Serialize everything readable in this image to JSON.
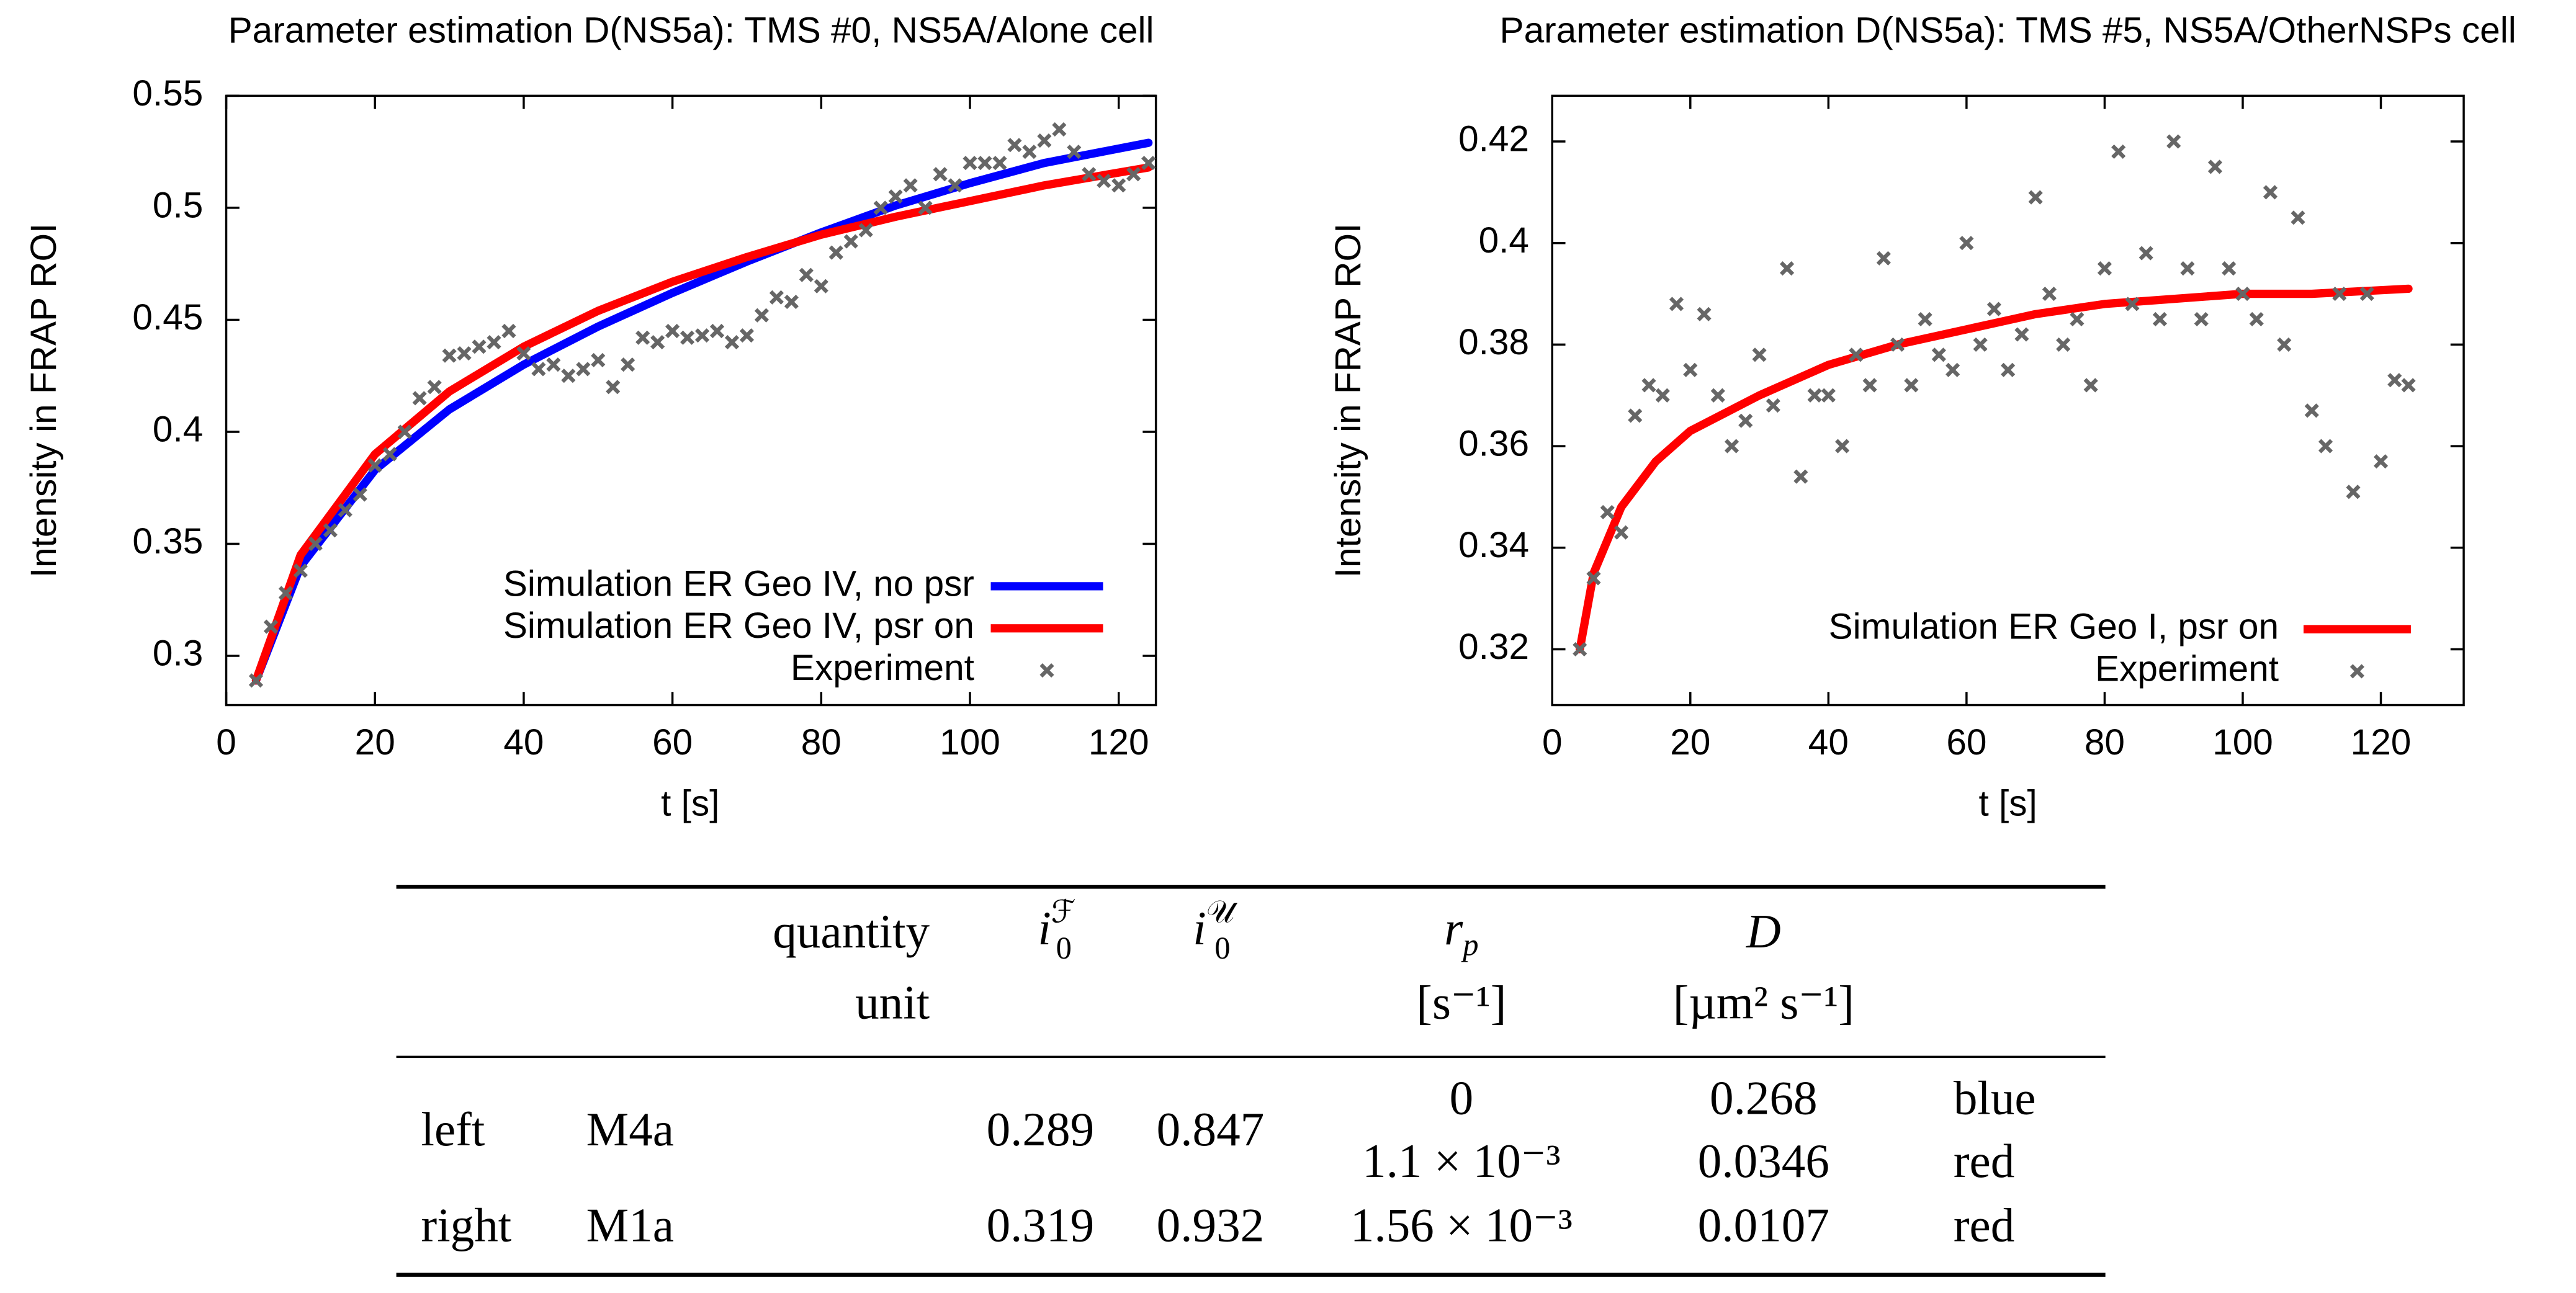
{
  "chart_data": [
    {
      "type": "line",
      "title": "Parameter estimation D(NS5a): TMS #0, NS5A/Alone cell",
      "xlabel": "t [s]",
      "ylabel": "Intensity in FRAP ROI",
      "xlim": [
        0,
        125
      ],
      "ylim": [
        0.278,
        0.55
      ],
      "xticks": [
        0,
        20,
        40,
        60,
        80,
        100,
        120
      ],
      "yticks": [
        0.3,
        0.35,
        0.4,
        0.45,
        0.5,
        0.55
      ],
      "legend": "lower right",
      "series": [
        {
          "name": "Simulation ER Geo IV, no psr",
          "color": "#0000ff",
          "style": "line",
          "x": [
            4,
            10,
            20,
            30,
            40,
            50,
            60,
            70,
            80,
            90,
            100,
            110,
            124
          ],
          "values": [
            0.289,
            0.34,
            0.383,
            0.41,
            0.43,
            0.447,
            0.462,
            0.476,
            0.489,
            0.501,
            0.511,
            0.52,
            0.529
          ]
        },
        {
          "name": "Simulation ER Geo IV, psr on",
          "color": "#ff0000",
          "style": "line",
          "x": [
            4,
            10,
            20,
            30,
            40,
            50,
            60,
            70,
            80,
            90,
            100,
            110,
            124
          ],
          "values": [
            0.289,
            0.345,
            0.39,
            0.418,
            0.438,
            0.454,
            0.467,
            0.478,
            0.488,
            0.496,
            0.503,
            0.51,
            0.518
          ]
        },
        {
          "name": "Experiment",
          "color": "#666666",
          "style": "points",
          "x": [
            4,
            6,
            8,
            10,
            12,
            14,
            16,
            18,
            20,
            22,
            24,
            26,
            28,
            30,
            32,
            34,
            36,
            38,
            40,
            42,
            44,
            46,
            48,
            50,
            52,
            54,
            56,
            58,
            60,
            62,
            64,
            66,
            68,
            70,
            72,
            74,
            76,
            78,
            80,
            82,
            84,
            86,
            88,
            90,
            92,
            94,
            96,
            98,
            100,
            102,
            104,
            106,
            108,
            110,
            112,
            114,
            116,
            118,
            120,
            122,
            124
          ],
          "values": [
            0.289,
            0.313,
            0.328,
            0.338,
            0.35,
            0.356,
            0.365,
            0.372,
            0.385,
            0.39,
            0.4,
            0.415,
            0.42,
            0.434,
            0.435,
            0.438,
            0.44,
            0.445,
            0.435,
            0.428,
            0.43,
            0.425,
            0.428,
            0.432,
            0.42,
            0.43,
            0.442,
            0.44,
            0.445,
            0.442,
            0.443,
            0.445,
            0.44,
            0.443,
            0.452,
            0.46,
            0.458,
            0.47,
            0.465,
            0.48,
            0.485,
            0.49,
            0.5,
            0.505,
            0.51,
            0.5,
            0.515,
            0.51,
            0.52,
            0.52,
            0.52,
            0.528,
            0.525,
            0.53,
            0.535,
            0.525,
            0.515,
            0.512,
            0.51,
            0.515,
            0.52
          ]
        }
      ]
    },
    {
      "type": "line",
      "title": "Parameter estimation D(NS5a): TMS #5, NS5A/OtherNSPs cell",
      "xlabel": "t [s]",
      "ylabel": "Intensity in FRAP ROI",
      "xlim": [
        0,
        132
      ],
      "ylim": [
        0.309,
        0.429
      ],
      "xticks": [
        0,
        20,
        40,
        60,
        80,
        100,
        120
      ],
      "yticks": [
        0.32,
        0.34,
        0.36,
        0.38,
        0.4,
        0.42
      ],
      "legend": "lower right",
      "series": [
        {
          "name": "Simulation ER Geo I, psr on",
          "color": "#ff0000",
          "style": "line",
          "x": [
            4,
            6,
            10,
            15,
            20,
            30,
            40,
            50,
            60,
            70,
            80,
            90,
            100,
            110,
            124
          ],
          "values": [
            0.32,
            0.335,
            0.348,
            0.357,
            0.363,
            0.37,
            0.376,
            0.38,
            0.383,
            0.386,
            0.388,
            0.389,
            0.39,
            0.39,
            0.391
          ]
        },
        {
          "name": "Experiment",
          "color": "#666666",
          "style": "points",
          "x": [
            4,
            6,
            8,
            10,
            12,
            14,
            16,
            18,
            20,
            22,
            24,
            26,
            28,
            30,
            32,
            34,
            36,
            38,
            40,
            42,
            44,
            46,
            48,
            50,
            52,
            54,
            56,
            58,
            60,
            62,
            64,
            66,
            68,
            70,
            72,
            74,
            76,
            78,
            80,
            82,
            84,
            86,
            88,
            90,
            92,
            94,
            96,
            98,
            100,
            102,
            104,
            106,
            108,
            110,
            112,
            114,
            116,
            118,
            120,
            122,
            124
          ],
          "values": [
            0.32,
            0.334,
            0.347,
            0.343,
            0.366,
            0.372,
            0.37,
            0.388,
            0.375,
            0.386,
            0.37,
            0.36,
            0.365,
            0.378,
            0.368,
            0.395,
            0.354,
            0.37,
            0.37,
            0.36,
            0.378,
            0.372,
            0.397,
            0.38,
            0.372,
            0.385,
            0.378,
            0.375,
            0.4,
            0.38,
            0.387,
            0.375,
            0.382,
            0.409,
            0.39,
            0.38,
            0.385,
            0.372,
            0.395,
            0.418,
            0.388,
            0.398,
            0.385,
            0.42,
            0.395,
            0.385,
            0.415,
            0.395,
            0.39,
            0.385,
            0.41,
            0.38,
            0.405,
            0.367,
            0.36,
            0.39,
            0.351,
            0.39,
            0.357,
            0.373,
            0.372
          ]
        }
      ]
    }
  ],
  "table": {
    "header": [
      "quantity",
      {
        "base": "i",
        "sub": "0",
        "sup": "ℱ"
      },
      {
        "base": "i",
        "sub": "0",
        "sup": "𝒰"
      },
      {
        "base": "r",
        "sub": "p"
      },
      "D"
    ],
    "units": {
      "label": "unit",
      "rp": "[s⁻¹]",
      "D": "[µm² s⁻¹]"
    },
    "rows": [
      {
        "side": "left",
        "model": "M4a",
        "i0F": 0.289,
        "i0U": 0.847,
        "rp": [
          0,
          "1.1 × 10⁻³"
        ],
        "D": [
          0.268,
          0.0346
        ],
        "color": [
          "blue",
          "red"
        ]
      },
      {
        "side": "right",
        "model": "M1a",
        "i0F": 0.319,
        "i0U": 0.932,
        "rp": [
          "1.56 × 10⁻³"
        ],
        "D": [
          0.0107
        ],
        "color": [
          "red"
        ]
      }
    ]
  }
}
